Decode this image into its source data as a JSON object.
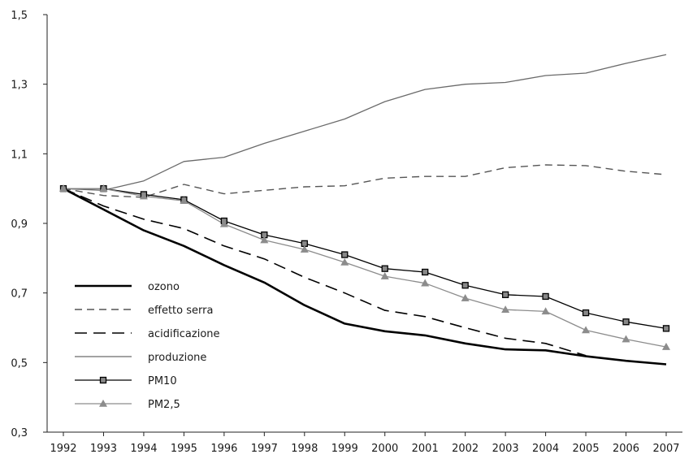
{
  "chart_data": {
    "type": "line",
    "title": "",
    "xlabel": "",
    "ylabel": "",
    "categories": [
      "1992",
      "1993",
      "1994",
      "1995",
      "1996",
      "1997",
      "1998",
      "1999",
      "2000",
      "2001",
      "2002",
      "2003",
      "2004",
      "2005",
      "2006",
      "2007"
    ],
    "ylim": [
      0.3,
      1.5
    ],
    "yticks": [
      0.3,
      0.5,
      0.7,
      0.9,
      1.1,
      1.3,
      1.5
    ],
    "ytick_labels": [
      "0,3",
      "0,5",
      "0,7",
      "0,9",
      "1,1",
      "1,3",
      "1,5"
    ],
    "grid": false,
    "legend_position": "lower-left",
    "series": [
      {
        "name": "ozono",
        "values": [
          1.0,
          0.94,
          0.88,
          0.835,
          0.78,
          0.73,
          0.665,
          0.612,
          0.59,
          0.578,
          0.555,
          0.538,
          0.535,
          0.518,
          0.505,
          0.495
        ],
        "color": "#000000",
        "style": "solid-thick",
        "marker": "none"
      },
      {
        "name": "effetto serra",
        "values": [
          1.0,
          0.98,
          0.975,
          1.012,
          0.985,
          0.995,
          1.005,
          1.008,
          1.03,
          1.035,
          1.035,
          1.06,
          1.068,
          1.066,
          1.05,
          1.04
        ],
        "color": "#555555",
        "style": "dashed-short",
        "marker": "none"
      },
      {
        "name": "acidificazione",
        "values": [
          1.0,
          0.95,
          0.912,
          0.885,
          0.835,
          0.798,
          0.745,
          0.7,
          0.65,
          0.632,
          0.6,
          0.57,
          0.555,
          0.52,
          null,
          null
        ],
        "color": "#000000",
        "style": "dashed-long",
        "marker": "none"
      },
      {
        "name": "produzione",
        "values": [
          1.0,
          0.995,
          1.022,
          1.078,
          1.09,
          1.13,
          1.165,
          1.2,
          1.25,
          1.285,
          1.3,
          1.305,
          1.325,
          1.332,
          1.36,
          1.385
        ],
        "color": "#6a6a6a",
        "style": "solid",
        "marker": "none"
      },
      {
        "name": "PM10",
        "values": [
          1.0,
          1.0,
          0.983,
          0.968,
          0.907,
          0.867,
          0.842,
          0.81,
          0.77,
          0.76,
          0.722,
          0.695,
          0.69,
          0.643,
          0.617,
          0.598
        ],
        "color": "#000000",
        "style": "solid",
        "marker": "square"
      },
      {
        "name": "PM2,5",
        "values": [
          1.0,
          1.0,
          0.978,
          0.965,
          0.898,
          0.852,
          0.825,
          0.788,
          0.748,
          0.728,
          0.685,
          0.652,
          0.647,
          0.593,
          0.567,
          0.545
        ],
        "color": "#8c8c8c",
        "style": "solid",
        "marker": "triangle"
      }
    ]
  }
}
